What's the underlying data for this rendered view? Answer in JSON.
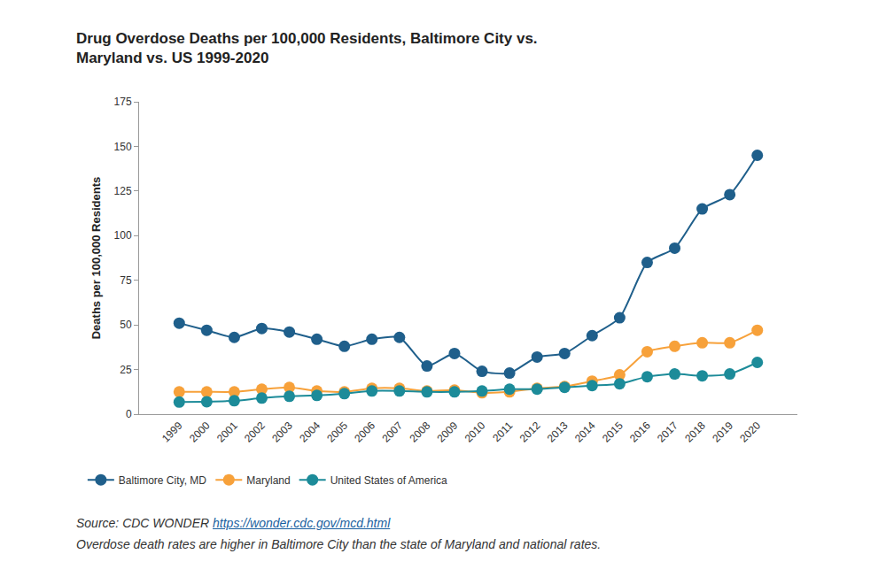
{
  "chart_data": {
    "type": "line",
    "title": "Drug Overdose Deaths per 100,000 Residents, Baltimore City vs.\nMaryland vs. US 1999-2020",
    "y_label": "Deaths per 100,000 Residents",
    "source": "Source: CDC WONDER",
    "source_link": "https://wonder.cdc.gov/mcd.html",
    "note": "Overdose death rates are higher in Baltimore City than the state of Maryland and national rates.",
    "categories": [
      "1999",
      "2000",
      "2001",
      "2002",
      "2003",
      "2004",
      "2005",
      "2006",
      "2007",
      "2008",
      "2009",
      "2010",
      "2011",
      "2012",
      "2013",
      "2014",
      "2015",
      "2016",
      "2017",
      "2018",
      "2019",
      "2020"
    ],
    "series": [
      {
        "name": "Baltimore City, MD",
        "color": "#1f5f8b",
        "marker": "circle",
        "values": [
          51,
          47,
          43,
          48,
          46,
          42,
          38,
          42,
          43,
          27,
          34,
          24,
          23,
          32,
          34,
          44,
          54,
          85,
          93,
          115,
          123,
          145
        ]
      },
      {
        "name": "Maryland",
        "color": "#f7a13a",
        "marker": "circle",
        "values": [
          12.5,
          12.5,
          12.5,
          14,
          15,
          13,
          12.5,
          14.5,
          14.5,
          13,
          13.5,
          12,
          12.5,
          14.5,
          15.5,
          18.5,
          22,
          35,
          38,
          40,
          40,
          47
        ]
      },
      {
        "name": "United States of America",
        "color": "#1c8b99",
        "marker": "circle",
        "values": [
          6.8,
          7,
          7.5,
          9,
          10,
          10.5,
          11.5,
          13,
          13,
          12.5,
          12.5,
          13,
          14,
          14,
          15,
          16,
          17,
          21,
          22.5,
          21.5,
          22.5,
          29
        ]
      }
    ],
    "ylim": [
      0,
      175
    ],
    "yticks": [
      0,
      25,
      50,
      75,
      100,
      125,
      150,
      175
    ],
    "grid": false,
    "legend": "bottom"
  }
}
